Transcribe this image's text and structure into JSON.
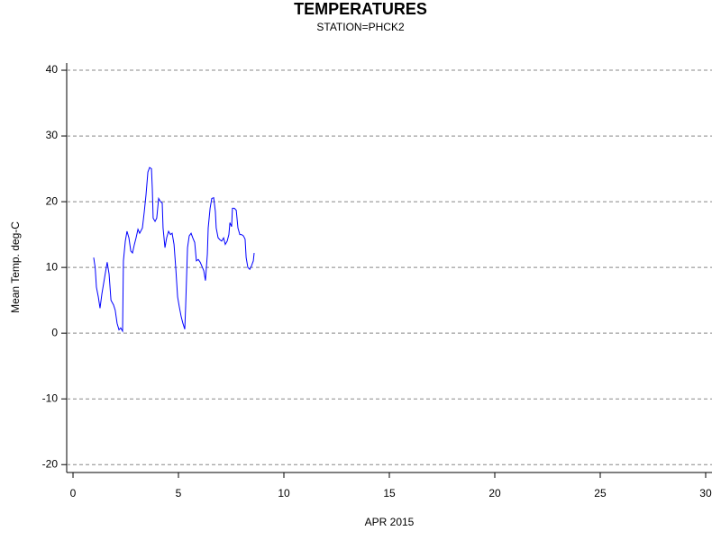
{
  "chart_data": {
    "type": "line",
    "title": "TEMPERATURES",
    "subtitle": "STATION=PHCK2",
    "x_label": "APR 2015",
    "y_label": "Mean Temp. deg-C",
    "xlim": [
      -0.3,
      30.3
    ],
    "ylim": [
      -21.2,
      41.1
    ],
    "xticks": [
      0,
      5,
      10,
      15,
      20,
      25,
      30
    ],
    "yticks": [
      -20,
      -10,
      0,
      10,
      20,
      30,
      40
    ],
    "grid": true,
    "series": [
      {
        "name": "Mean Temp.",
        "color": "#0000ff",
        "x": [
          0.98,
          1.05,
          1.11,
          1.2,
          1.28,
          1.37,
          1.5,
          1.62,
          1.71,
          1.8,
          1.92,
          2.0,
          2.09,
          2.18,
          2.26,
          2.35,
          2.39,
          2.48,
          2.56,
          2.65,
          2.74,
          2.82,
          2.91,
          2.99,
          3.08,
          3.16,
          3.29,
          3.38,
          3.46,
          3.55,
          3.63,
          3.72,
          3.76,
          3.8,
          3.89,
          3.97,
          4.06,
          4.15,
          4.23,
          4.27,
          4.36,
          4.44,
          4.53,
          4.62,
          4.7,
          4.79,
          4.87,
          4.96,
          5.04,
          5.13,
          5.21,
          5.3,
          5.34,
          5.43,
          5.51,
          5.6,
          5.68,
          5.77,
          5.85,
          5.94,
          6.03,
          6.11,
          6.2,
          6.28,
          6.37,
          6.41,
          6.5,
          6.58,
          6.67,
          6.75,
          6.79,
          6.88,
          6.97,
          7.05,
          7.14,
          7.22,
          7.31,
          7.39,
          7.44,
          7.52,
          7.56,
          7.65,
          7.74,
          7.82,
          7.91,
          7.99,
          8.08,
          8.16,
          8.21,
          8.29,
          8.38,
          8.46,
          8.55,
          8.59
        ],
        "values": [
          11.5,
          10,
          7,
          5.5,
          3.8,
          6,
          8.5,
          10.8,
          9,
          5,
          4.3,
          3.5,
          1.5,
          0.5,
          0.8,
          0.3,
          11,
          14,
          15.5,
          14.5,
          12.5,
          12.2,
          13.5,
          14.5,
          15.8,
          15.2,
          16,
          18.5,
          21,
          24.5,
          25.2,
          25,
          22,
          17.5,
          17,
          17.5,
          20.5,
          20,
          19.8,
          16,
          13,
          14.5,
          15.5,
          15,
          15.2,
          13.5,
          10,
          5.5,
          4,
          2.5,
          1.5,
          0.6,
          4,
          13,
          14.8,
          15.2,
          14.5,
          13.8,
          11,
          11.2,
          10.8,
          10.2,
          9.5,
          8,
          12,
          16,
          19,
          20.5,
          20.6,
          18.5,
          16,
          14.5,
          14.2,
          14,
          14.5,
          13.5,
          14,
          15,
          16.8,
          16.2,
          19,
          19,
          18.7,
          16,
          15,
          15,
          14.8,
          14.3,
          11.5,
          10,
          9.7,
          10.2,
          11,
          12.2
        ]
      }
    ]
  }
}
